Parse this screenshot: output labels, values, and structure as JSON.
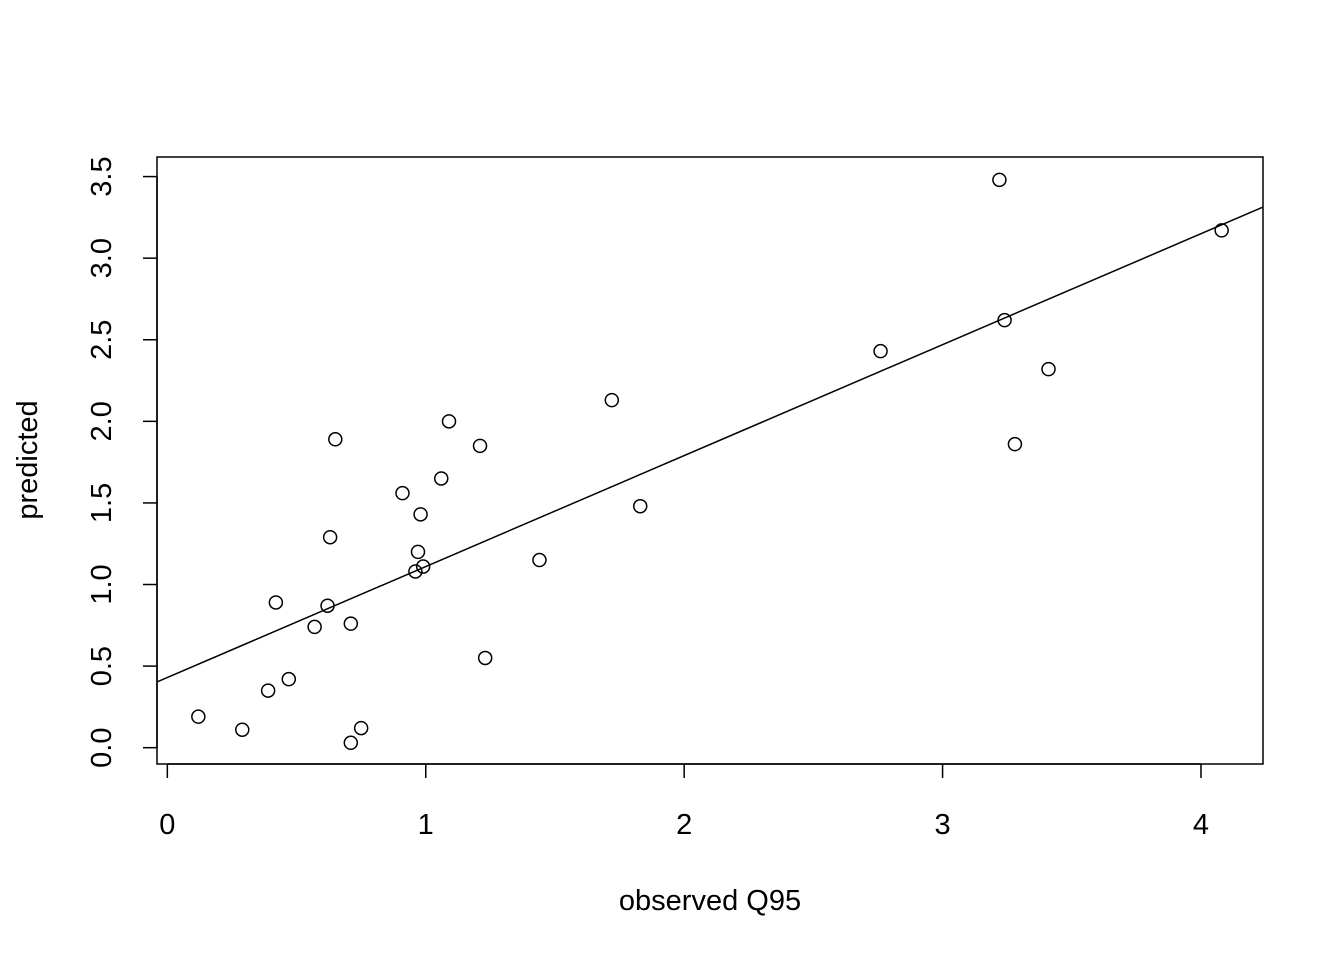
{
  "chart_data": {
    "type": "scatter",
    "title": "",
    "xlabel": "observed Q95",
    "ylabel": "predicted",
    "xlim": [
      -0.04,
      4.24
    ],
    "ylim": [
      -0.1,
      3.62
    ],
    "x_ticks": [
      0,
      1,
      2,
      3,
      4
    ],
    "x_tick_labels": [
      "0",
      "1",
      "2",
      "3",
      "4"
    ],
    "y_ticks": [
      0.0,
      0.5,
      1.0,
      1.5,
      2.0,
      2.5,
      3.0,
      3.5
    ],
    "y_tick_labels": [
      "0.0",
      "0.5",
      "1.0",
      "1.5",
      "2.0",
      "2.5",
      "3.0",
      "3.5"
    ],
    "grid": false,
    "legend": "none",
    "fit_line": {
      "intercept": 0.43,
      "slope": 0.68
    },
    "points": [
      {
        "x": 0.12,
        "y": 0.19
      },
      {
        "x": 0.29,
        "y": 0.11
      },
      {
        "x": 0.39,
        "y": 0.35
      },
      {
        "x": 0.42,
        "y": 0.89
      },
      {
        "x": 0.47,
        "y": 0.42
      },
      {
        "x": 0.57,
        "y": 0.74
      },
      {
        "x": 0.62,
        "y": 0.87
      },
      {
        "x": 0.63,
        "y": 1.29
      },
      {
        "x": 0.65,
        "y": 1.89
      },
      {
        "x": 0.71,
        "y": 0.76
      },
      {
        "x": 0.71,
        "y": 0.03
      },
      {
        "x": 0.75,
        "y": 0.12
      },
      {
        "x": 0.91,
        "y": 1.56
      },
      {
        "x": 0.96,
        "y": 1.08
      },
      {
        "x": 0.97,
        "y": 1.2
      },
      {
        "x": 0.98,
        "y": 1.43
      },
      {
        "x": 0.99,
        "y": 1.11
      },
      {
        "x": 1.06,
        "y": 1.65
      },
      {
        "x": 1.09,
        "y": 2.0
      },
      {
        "x": 1.21,
        "y": 1.85
      },
      {
        "x": 1.23,
        "y": 0.55
      },
      {
        "x": 1.44,
        "y": 1.15
      },
      {
        "x": 1.72,
        "y": 2.13
      },
      {
        "x": 1.83,
        "y": 1.48
      },
      {
        "x": 2.76,
        "y": 2.43
      },
      {
        "x": 3.22,
        "y": 3.48
      },
      {
        "x": 3.24,
        "y": 2.62
      },
      {
        "x": 3.28,
        "y": 1.86
      },
      {
        "x": 3.41,
        "y": 2.32
      },
      {
        "x": 4.08,
        "y": 3.17
      }
    ]
  }
}
